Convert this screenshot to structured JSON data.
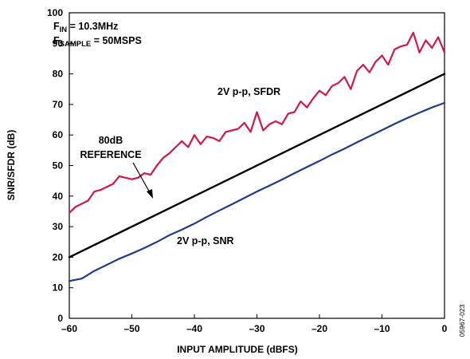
{
  "chart_data": {
    "type": "line",
    "xlabel": "INPUT AMPLITUDE (dBFS)",
    "ylabel": "SNR/SFDR (dB)",
    "xlim": [
      -60,
      0
    ],
    "ylim": [
      0,
      100
    ],
    "xticks": [
      -60,
      -50,
      -40,
      -30,
      -20,
      -10,
      0
    ],
    "xtick_labels": [
      "–60",
      "–50",
      "–40",
      "–30",
      "–20",
      "–10",
      "0"
    ],
    "yticks": [
      0,
      10,
      20,
      30,
      40,
      50,
      60,
      70,
      80,
      90,
      100
    ],
    "grid": false,
    "legend": null,
    "series": [
      {
        "name": "2V p-p, SFDR",
        "color": "#d2174b",
        "points": [
          [
            -60,
            34.5
          ],
          [
            -59,
            36.5
          ],
          [
            -58,
            37.5
          ],
          [
            -57,
            38.5
          ],
          [
            -56,
            41.5
          ],
          [
            -55,
            42
          ],
          [
            -54,
            43
          ],
          [
            -53,
            44
          ],
          [
            -52,
            46.5
          ],
          [
            -51,
            46
          ],
          [
            -50,
            45.5
          ],
          [
            -49,
            46
          ],
          [
            -48,
            47.5
          ],
          [
            -47,
            47
          ],
          [
            -46,
            50
          ],
          [
            -45,
            52.5
          ],
          [
            -44,
            54
          ],
          [
            -43,
            56
          ],
          [
            -42,
            58
          ],
          [
            -41,
            56
          ],
          [
            -40,
            60
          ],
          [
            -39,
            57
          ],
          [
            -38,
            59.5
          ],
          [
            -37,
            59
          ],
          [
            -36,
            58
          ],
          [
            -35,
            61
          ],
          [
            -34,
            61.5
          ],
          [
            -33,
            62
          ],
          [
            -32,
            64
          ],
          [
            -31,
            61
          ],
          [
            -30,
            67.5
          ],
          [
            -29,
            61.5
          ],
          [
            -28,
            63.5
          ],
          [
            -27,
            64.5
          ],
          [
            -26,
            63.5
          ],
          [
            -25,
            67
          ],
          [
            -24,
            67.5
          ],
          [
            -23,
            71
          ],
          [
            -22,
            69
          ],
          [
            -21,
            72
          ],
          [
            -20,
            74.5
          ],
          [
            -19,
            73
          ],
          [
            -18,
            76
          ],
          [
            -17,
            77
          ],
          [
            -16,
            79
          ],
          [
            -15,
            75
          ],
          [
            -14,
            81
          ],
          [
            -13,
            83
          ],
          [
            -12,
            80.5
          ],
          [
            -11,
            84
          ],
          [
            -10,
            86
          ],
          [
            -9,
            83
          ],
          [
            -8,
            88
          ],
          [
            -7,
            89
          ],
          [
            -6,
            89.5
          ],
          [
            -5,
            93.5
          ],
          [
            -4,
            87
          ],
          [
            -3,
            91
          ],
          [
            -2,
            88.5
          ],
          [
            -1,
            92
          ],
          [
            0,
            87
          ]
        ]
      },
      {
        "name": "80dB REFERENCE",
        "color": "#000000",
        "points": [
          [
            -60,
            20
          ],
          [
            0,
            80
          ]
        ]
      },
      {
        "name": "2V p-p, SNR",
        "color": "#1f3c88",
        "points": [
          [
            -60,
            12.2
          ],
          [
            -58,
            13
          ],
          [
            -56,
            15.5
          ],
          [
            -54,
            17.5
          ],
          [
            -52,
            19.5
          ],
          [
            -50,
            21.2
          ],
          [
            -48,
            23
          ],
          [
            -46,
            25
          ],
          [
            -44,
            27.2
          ],
          [
            -42,
            29
          ],
          [
            -40,
            31
          ],
          [
            -38,
            33.2
          ],
          [
            -36,
            35.3
          ],
          [
            -34,
            37.3
          ],
          [
            -32,
            39.4
          ],
          [
            -30,
            41.5
          ],
          [
            -28,
            43.4
          ],
          [
            -26,
            45.4
          ],
          [
            -24,
            47.5
          ],
          [
            -22,
            49.5
          ],
          [
            -20,
            51.5
          ],
          [
            -18,
            53.6
          ],
          [
            -16,
            55.5
          ],
          [
            -14,
            57.6
          ],
          [
            -12,
            59.6
          ],
          [
            -10,
            61.6
          ],
          [
            -8,
            63.6
          ],
          [
            -6,
            65.5
          ],
          [
            -4,
            67.3
          ],
          [
            -2,
            69
          ],
          [
            0,
            70.5
          ]
        ]
      }
    ],
    "annotations": {
      "fin_main": "F",
      "fin_sub": "IN",
      "fin_value": " = 10.3MHz",
      "fsample_main": "F",
      "fsample_sub": "SAMPLE",
      "fsample_value": " = 50MSPS",
      "sfdr_label": "2V p-p, SFDR",
      "ref_line1": "80dB",
      "ref_line2": "REFERENCE",
      "snr_label": "2V p-p, SNR",
      "figure_id": "05967-023"
    }
  }
}
